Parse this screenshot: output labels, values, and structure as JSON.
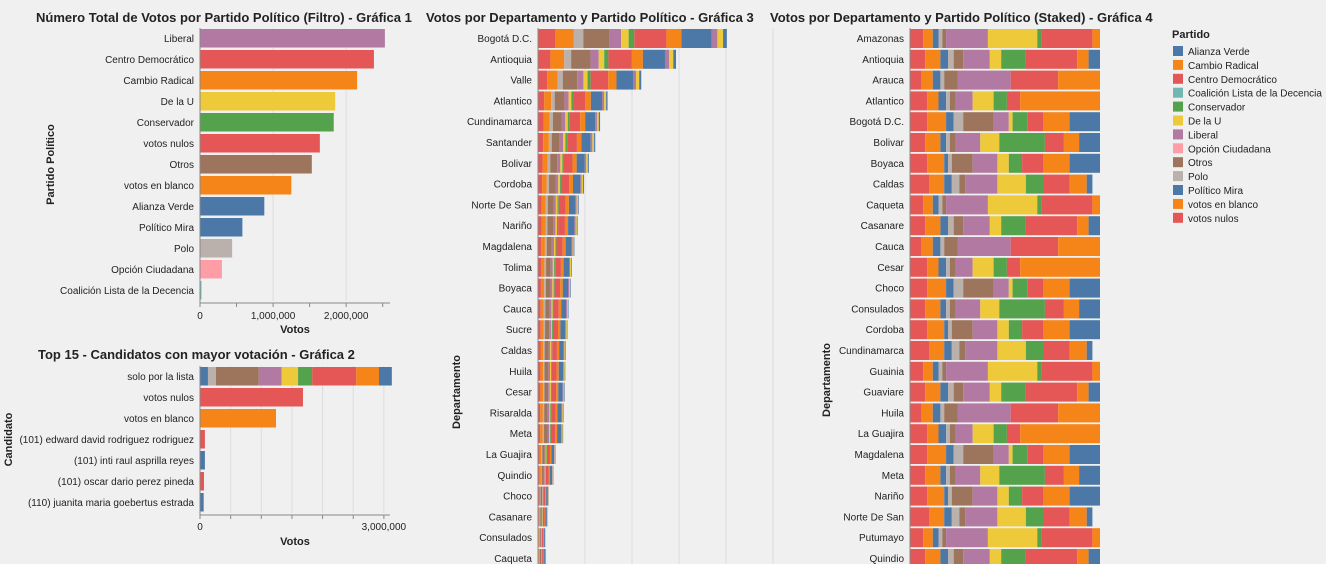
{
  "party_colors": {
    "Alianza Verde": "#4c78a8",
    "Cambio Radical": "#f58518",
    "Centro Democrático": "#e45756",
    "Coalición Lista de la Decencia": "#72b7b2",
    "Conservador": "#54a24b",
    "De la U": "#eeca3b",
    "Liberal": "#b279a2",
    "Opción Ciudadana": "#ff9da6",
    "Otros": "#9d755d",
    "Polo": "#bab0ac",
    "Político Mira": "#4c78a8",
    "votos en blanco": "#f58518",
    "votos nulos": "#e45756"
  },
  "legend": {
    "title": "Partido",
    "items": [
      "Alianza Verde",
      "Cambio Radical",
      "Centro Democrático",
      "Coalición Lista de la Decencia",
      "Conservador",
      "De la U",
      "Liberal",
      "Opción Ciudadana",
      "Otros",
      "Polo",
      "Político Mira",
      "votos en blanco",
      "votos nulos"
    ]
  },
  "chart_data": [
    {
      "type": "bar",
      "title": "Número Total de Votos por Partido Político (Filtro) - Gráfica 1",
      "xlabel": "Votos",
      "ylabel": "Partido Político",
      "xlim": [
        0,
        2600000
      ],
      "xticks": [
        {
          "v": 0,
          "l": "0"
        },
        {
          "v": 1000000,
          "l": "1,000,000"
        },
        {
          "v": 2000000,
          "l": "2,000,000"
        }
      ],
      "categories": [
        "Liberal",
        "Centro Democrático",
        "Cambio Radical",
        "De la U",
        "Conservador",
        "votos nulos",
        "Otros",
        "votos en blanco",
        "Alianza Verde",
        "Político Mira",
        "Polo",
        "Opción Ciudadana",
        "Coalición Lista de la Decencia"
      ],
      "values": [
        2530000,
        2380000,
        2150000,
        1850000,
        1830000,
        1640000,
        1530000,
        1250000,
        880000,
        580000,
        440000,
        300000,
        20000
      ]
    },
    {
      "type": "bar",
      "title": "Top 15 - Candidatos con mayor votación - Gráfica 2",
      "xlabel": "Votos",
      "ylabel": "Candidato",
      "xlim": [
        0,
        3100000
      ],
      "xticks": [
        {
          "v": 0,
          "l": "0"
        },
        {
          "v": 3000000,
          "l": "3,000,000"
        }
      ],
      "categories": [
        "solo por la lista",
        "votos nulos",
        "votos en blanco",
        "(101) edward david rodriguez rodriguez",
        "(101) inti raul asprilla reyes",
        "(101) oscar dario perez pineda",
        "(110) juanita maria goebertus estrada"
      ],
      "stacked": [
        [
          [
            "Alianza Verde",
            130000
          ],
          [
            "Polo",
            130000
          ],
          [
            "Otros",
            700000
          ],
          [
            "Liberal",
            370000
          ],
          [
            "De la U",
            270000
          ],
          [
            "Conservador",
            230000
          ],
          [
            "Centro Democrático",
            720000
          ],
          [
            "Cambio Radical",
            370000
          ],
          [
            "Político Mira",
            210000
          ]
        ],
        [
          [
            "votos nulos",
            1680000
          ]
        ],
        [
          [
            "votos en blanco",
            1240000
          ]
        ],
        [
          [
            "Centro Democrático",
            80000
          ]
        ],
        [
          [
            "Alianza Verde",
            80000
          ]
        ],
        [
          [
            "Centro Democrático",
            65000
          ]
        ],
        [
          [
            "Alianza Verde",
            60000
          ]
        ]
      ]
    },
    {
      "type": "bar",
      "title": "Votos por Departamento y Partido Político - Gráfica 3",
      "xlabel": "",
      "ylabel": "Departamento",
      "departments": [
        "Bogotá D.C.",
        "Antioquia",
        "Valle",
        "Atlantico",
        "Cundinamarca",
        "Santander",
        "Bolivar",
        "Cordoba",
        "Norte De San",
        "Nariño",
        "Magdalena",
        "Tolima",
        "Boyaca",
        "Cauca",
        "Sucre",
        "Caldas",
        "Huila",
        "Cesar",
        "Risaralda",
        "Meta",
        "La Guajira",
        "Quindio",
        "Choco",
        "Casanare",
        "Consulados",
        "Caqueta"
      ],
      "totals": [
        3530,
        2580,
        1930,
        1300,
        1160,
        1070,
        950,
        860,
        760,
        740,
        680,
        630,
        610,
        570,
        550,
        520,
        510,
        500,
        480,
        470,
        330,
        290,
        200,
        180,
        140,
        150
      ]
    },
    {
      "type": "bar",
      "title": "Votos por Departamento y Partido Político (Staked) - Gráfica 4",
      "xlabel": "",
      "ylabel": "Departamento",
      "departments": [
        "Amazonas",
        "Antioquia",
        "Arauca",
        "Atlantico",
        "Bogotá D.C.",
        "Bolivar",
        "Boyaca",
        "Caldas",
        "Caqueta",
        "Casanare",
        "Cauca",
        "Cesar",
        "Choco",
        "Consulados",
        "Cordoba",
        "Cundinamarca",
        "Guainia",
        "Guaviare",
        "Huila",
        "La Guajira",
        "Magdalena",
        "Meta",
        "Nariño",
        "Norte De San",
        "Putumayo",
        "Quindio"
      ]
    }
  ]
}
